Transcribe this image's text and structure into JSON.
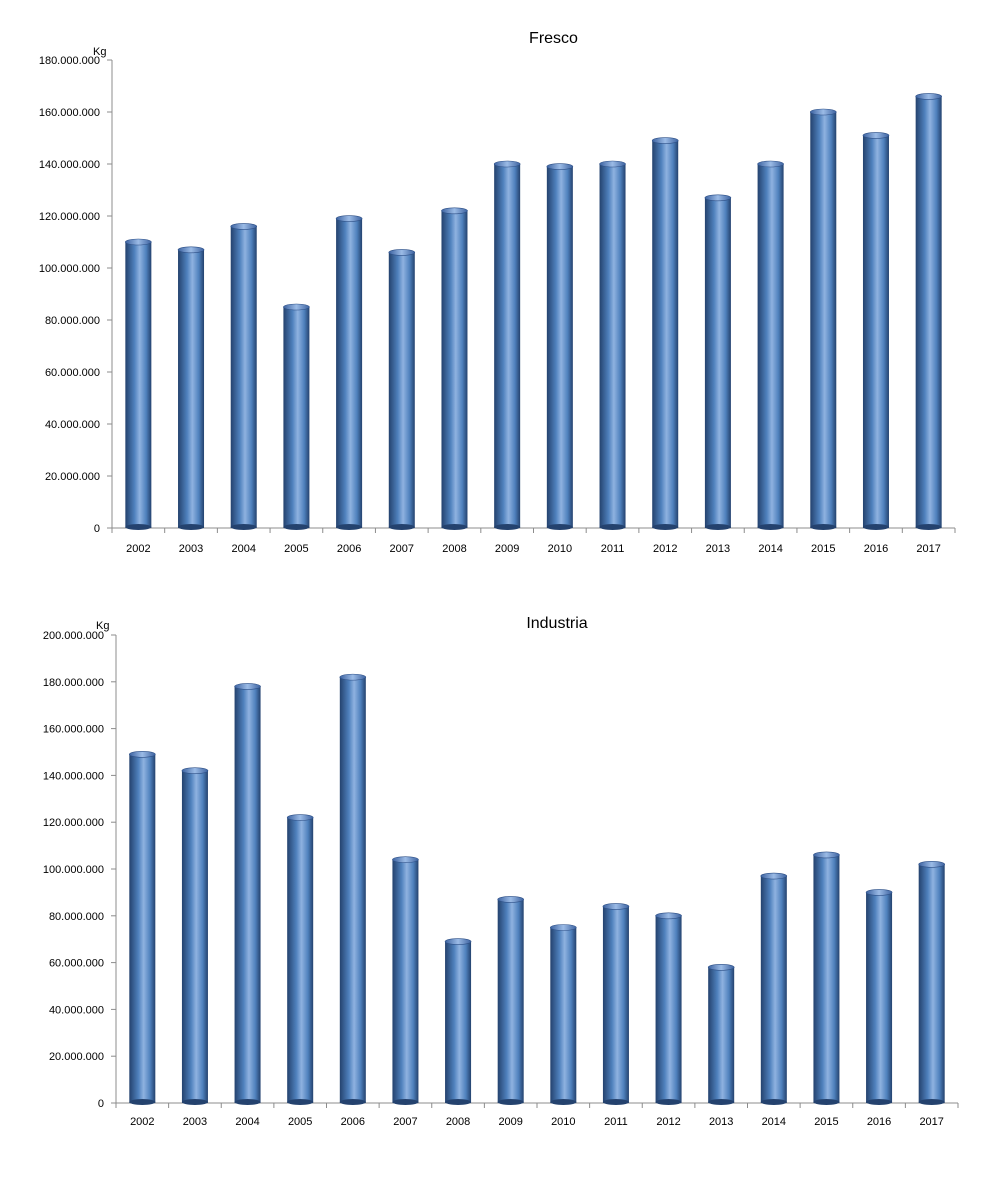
{
  "colors": {
    "bar_dark": "#24426e",
    "bar_mid": "#4f81bd",
    "bar_light": "#8fb2e0",
    "axis": "#8c8c8c"
  },
  "chart_data": [
    {
      "type": "bar",
      "title": "Fresco",
      "ylabel": "Kg",
      "xlabel": "",
      "categories": [
        "2002",
        "2003",
        "2004",
        "2005",
        "2006",
        "2007",
        "2008",
        "2009",
        "2010",
        "2011",
        "2012",
        "2013",
        "2014",
        "2015",
        "2016",
        "2017"
      ],
      "values": [
        110000000,
        107000000,
        116000000,
        85000000,
        119000000,
        106000000,
        122000000,
        140000000,
        139000000,
        140000000,
        149000000,
        127000000,
        140000000,
        160000000,
        151000000,
        166000000
      ],
      "ylim": [
        0,
        180000000
      ],
      "yticks": [
        {
          "value": 0,
          "label": "0"
        },
        {
          "value": 20000000,
          "label": "20.000.000"
        },
        {
          "value": 40000000,
          "label": "40.000.000"
        },
        {
          "value": 60000000,
          "label": "60.000.000"
        },
        {
          "value": 80000000,
          "label": "80.000.000"
        },
        {
          "value": 100000000,
          "label": "100.000.000"
        },
        {
          "value": 120000000,
          "label": "120.000.000"
        },
        {
          "value": 140000000,
          "label": "140.000.000"
        },
        {
          "value": 160000000,
          "label": "160.000.000"
        },
        {
          "value": 180000000,
          "label": "180.000.000"
        }
      ],
      "grid": false,
      "legend": "none"
    },
    {
      "type": "bar",
      "title": "Industria",
      "ylabel": "Kg",
      "xlabel": "",
      "categories": [
        "2002",
        "2003",
        "2004",
        "2005",
        "2006",
        "2007",
        "2008",
        "2009",
        "2010",
        "2011",
        "2012",
        "2013",
        "2014",
        "2015",
        "2016",
        "2017"
      ],
      "values": [
        149000000,
        142000000,
        178000000,
        122000000,
        182000000,
        104000000,
        69000000,
        87000000,
        75000000,
        84000000,
        80000000,
        58000000,
        97000000,
        106000000,
        90000000,
        102000000
      ],
      "ylim": [
        0,
        200000000
      ],
      "yticks": [
        {
          "value": 0,
          "label": "0"
        },
        {
          "value": 20000000,
          "label": "20.000.000"
        },
        {
          "value": 40000000,
          "label": "40.000.000"
        },
        {
          "value": 60000000,
          "label": "60.000.000"
        },
        {
          "value": 80000000,
          "label": "80.000.000"
        },
        {
          "value": 100000000,
          "label": "100.000.000"
        },
        {
          "value": 120000000,
          "label": "120.000.000"
        },
        {
          "value": 140000000,
          "label": "140.000.000"
        },
        {
          "value": 160000000,
          "label": "160.000.000"
        },
        {
          "value": 180000000,
          "label": "180.000.000"
        },
        {
          "value": 200000000,
          "label": "200.000.000"
        }
      ],
      "grid": false,
      "legend": "none"
    }
  ]
}
